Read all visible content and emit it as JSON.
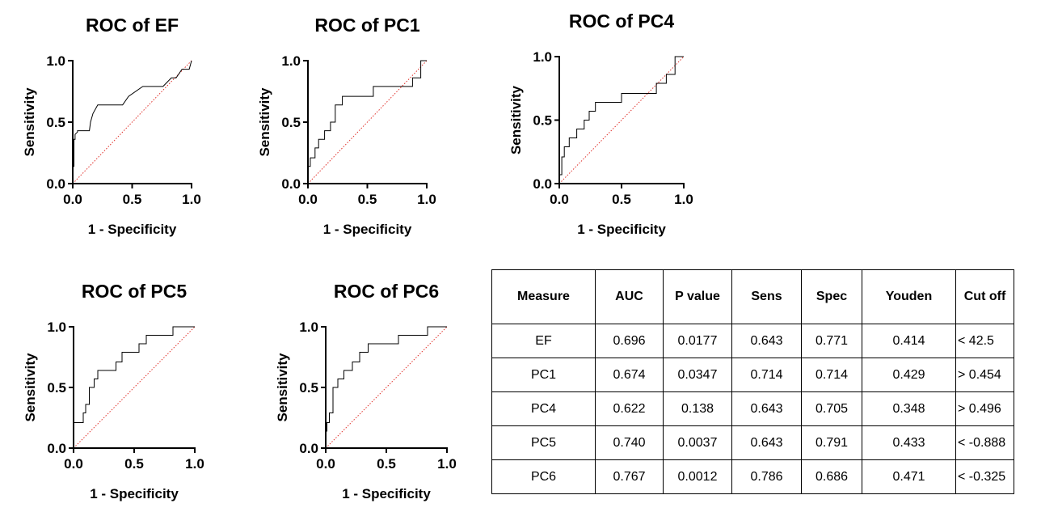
{
  "panels": [
    {
      "title": "ROC of EF",
      "chart_data": {
        "type": "line",
        "title": "ROC of EF",
        "xlabel": "1 - Specificity",
        "ylabel": "Sensitivity",
        "xlim": [
          0,
          1
        ],
        "ylim": [
          0,
          1
        ],
        "xticks": [
          "0.0",
          "0.5",
          "1.0"
        ],
        "yticks": [
          "0.0",
          "0.5",
          "1.0"
        ],
        "reference_line": "diagonal, red dotted",
        "series": [
          {
            "x": [
              0,
              0,
              0.01,
              0.01,
              0.02,
              0.02,
              0.04,
              0.04,
              0.09,
              0.14,
              0.15,
              0.17,
              0.21,
              0.28,
              0.42,
              0.47,
              0.59,
              0.76,
              0.83,
              0.87,
              0.92,
              0.98,
              1.0
            ],
            "y": [
              0,
              0.14,
              0.14,
              0.36,
              0.36,
              0.4,
              0.42,
              0.43,
              0.43,
              0.43,
              0.5,
              0.57,
              0.64,
              0.64,
              0.64,
              0.71,
              0.79,
              0.79,
              0.86,
              0.86,
              0.93,
              0.93,
              1.0
            ]
          }
        ]
      }
    },
    {
      "title": "ROC of PC1",
      "chart_data": {
        "type": "line",
        "title": "ROC of PC1",
        "xlabel": "1 - Specificity",
        "ylabel": "Sensitivity",
        "xlim": [
          0,
          1
        ],
        "ylim": [
          0,
          1
        ],
        "xticks": [
          "0.0",
          "0.5",
          "1.0"
        ],
        "yticks": [
          "0.0",
          "0.5",
          "1.0"
        ],
        "reference_line": "diagonal, red dotted",
        "series": [
          {
            "x": [
              0,
              0.02,
              0.02,
              0.06,
              0.06,
              0.09,
              0.09,
              0.14,
              0.14,
              0.19,
              0.19,
              0.23,
              0.23,
              0.29,
              0.29,
              0.55,
              0.55,
              0.88,
              0.88,
              0.95,
              0.95,
              1.0
            ],
            "y": [
              0.14,
              0.14,
              0.21,
              0.21,
              0.29,
              0.29,
              0.36,
              0.36,
              0.43,
              0.43,
              0.5,
              0.5,
              0.64,
              0.64,
              0.71,
              0.71,
              0.79,
              0.79,
              0.86,
              0.86,
              1.0,
              1.0
            ]
          }
        ]
      }
    },
    {
      "title": "ROC of PC4",
      "chart_data": {
        "type": "line",
        "title": "ROC of PC4",
        "xlabel": "1 - Specificity",
        "ylabel": "Sensitivity",
        "xlim": [
          0,
          1
        ],
        "ylim": [
          0,
          1
        ],
        "xticks": [
          "0.0",
          "0.5",
          "1.0"
        ],
        "yticks": [
          "0.0",
          "0.5",
          "1.0"
        ],
        "reference_line": "diagonal, red dotted",
        "series": [
          {
            "x": [
              0,
              0.02,
              0.02,
              0.04,
              0.04,
              0.08,
              0.08,
              0.14,
              0.14,
              0.2,
              0.2,
              0.24,
              0.24,
              0.29,
              0.29,
              0.5,
              0.5,
              0.78,
              0.78,
              0.86,
              0.86,
              0.93,
              0.93,
              1.0
            ],
            "y": [
              0.07,
              0.07,
              0.21,
              0.21,
              0.29,
              0.29,
              0.36,
              0.36,
              0.43,
              0.43,
              0.5,
              0.5,
              0.57,
              0.57,
              0.64,
              0.64,
              0.71,
              0.71,
              0.79,
              0.79,
              0.86,
              0.86,
              1.0,
              1.0
            ]
          }
        ]
      }
    },
    {
      "title": "ROC of PC5",
      "chart_data": {
        "type": "line",
        "title": "ROC of PC5",
        "xlabel": "1 - Specificity",
        "ylabel": "Sensitivity",
        "xlim": [
          0,
          1
        ],
        "ylim": [
          0,
          1
        ],
        "xticks": [
          "0.0",
          "0.5",
          "1.0"
        ],
        "yticks": [
          "0.0",
          "0.5",
          "1.0"
        ],
        "reference_line": "diagonal, red dotted",
        "series": [
          {
            "x": [
              0,
              0.08,
              0.08,
              0.1,
              0.1,
              0.13,
              0.13,
              0.17,
              0.17,
              0.2,
              0.2,
              0.35,
              0.35,
              0.4,
              0.4,
              0.54,
              0.54,
              0.6,
              0.6,
              0.82,
              0.82,
              1.0
            ],
            "y": [
              0.21,
              0.21,
              0.29,
              0.29,
              0.36,
              0.36,
              0.5,
              0.5,
              0.57,
              0.57,
              0.64,
              0.64,
              0.71,
              0.71,
              0.79,
              0.79,
              0.86,
              0.86,
              0.93,
              0.93,
              1.0,
              1.0
            ]
          }
        ]
      }
    },
    {
      "title": "ROC of PC6",
      "chart_data": {
        "type": "line",
        "title": "ROC of PC6",
        "xlabel": "1 - Specificity",
        "ylabel": "Sensitivity",
        "xlim": [
          0,
          1
        ],
        "ylim": [
          0,
          1
        ],
        "xticks": [
          "0.0",
          "0.5",
          "1.0"
        ],
        "yticks": [
          "0.0",
          "0.5",
          "1.0"
        ],
        "reference_line": "diagonal, red dotted",
        "series": [
          {
            "x": [
              0,
              0.01,
              0.01,
              0.03,
              0.03,
              0.06,
              0.06,
              0.1,
              0.1,
              0.15,
              0.15,
              0.22,
              0.22,
              0.28,
              0.28,
              0.35,
              0.35,
              0.6,
              0.6,
              0.84,
              0.84,
              1.0
            ],
            "y": [
              0.14,
              0.14,
              0.21,
              0.21,
              0.29,
              0.29,
              0.5,
              0.5,
              0.57,
              0.57,
              0.64,
              0.64,
              0.71,
              0.71,
              0.79,
              0.79,
              0.86,
              0.86,
              0.93,
              0.93,
              1.0,
              1.0
            ]
          }
        ]
      }
    }
  ],
  "table": {
    "headers": [
      "Measure",
      "AUC",
      "P value",
      "Sens",
      "Spec",
      "Youden",
      "Cut off"
    ],
    "rows": [
      [
        "EF",
        "0.696",
        "0.0177",
        "0.643",
        "0.771",
        "0.414",
        "< 42.5"
      ],
      [
        "PC1",
        "0.674",
        "0.0347",
        "0.714",
        "0.714",
        "0.429",
        "> 0.454"
      ],
      [
        "PC4",
        "0.622",
        "0.138",
        "0.643",
        "0.705",
        "0.348",
        "> 0.496"
      ],
      [
        "PC5",
        "0.740",
        "0.0037",
        "0.643",
        "0.791",
        "0.433",
        "< -0.888"
      ],
      [
        "PC6",
        "0.767",
        "0.0012",
        "0.786",
        "0.686",
        "0.471",
        "< -0.325"
      ]
    ]
  },
  "colors": {
    "curve": "#000000",
    "reference": "#e0302a"
  }
}
